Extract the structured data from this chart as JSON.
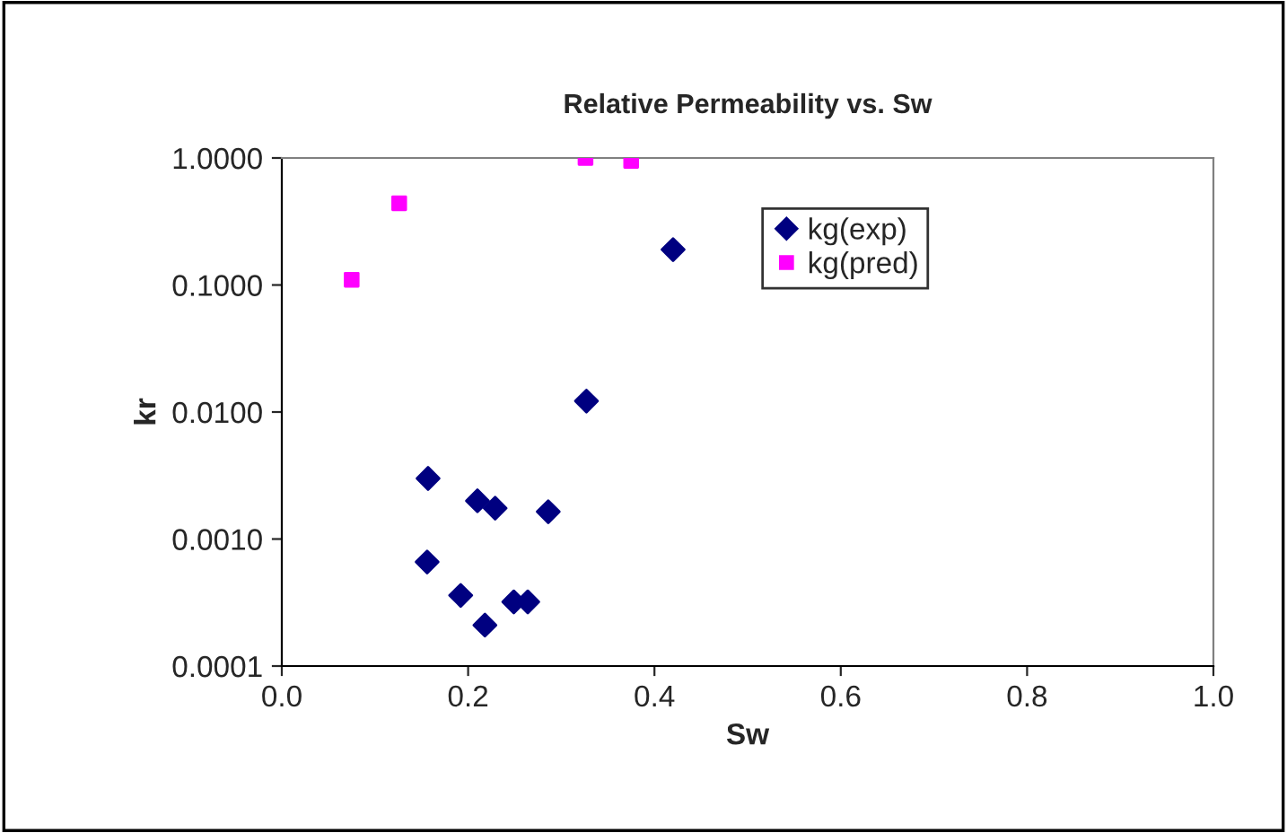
{
  "chart_data": {
    "type": "scatter",
    "title": "Relative Permeability vs. Sw",
    "xlabel": "Sw",
    "ylabel": "kr",
    "log": "y",
    "series": [
      {
        "name": "kg(exp)",
        "color": "#000080",
        "marker": "diamond",
        "x": [
          0.42,
          0.327,
          0.157,
          0.21,
          0.229,
          0.286,
          0.156,
          0.192,
          0.218,
          0.249,
          0.264
        ],
        "values": [
          0.19,
          0.0122,
          0.003,
          0.002,
          0.00175,
          0.00164,
          0.00066,
          0.00036,
          0.00021,
          0.00032,
          0.00032
        ]
      },
      {
        "name": "kg(pred)",
        "color": "#ff00ff",
        "marker": "square",
        "x": [
          0.075,
          0.126,
          0.326,
          0.375
        ],
        "values": [
          0.11,
          0.44,
          1.0,
          0.95
        ]
      }
    ],
    "xlim": [
      0,
      1
    ],
    "xticks": [
      {
        "value": 0,
        "label": "0.0"
      },
      {
        "value": 0.2,
        "label": "0.2"
      },
      {
        "value": 0.4,
        "label": "0.4"
      },
      {
        "value": 0.6,
        "label": "0.6"
      },
      {
        "value": 0.8,
        "label": "0.8"
      },
      {
        "value": 1,
        "label": "1.0"
      }
    ],
    "ylim": [
      0.0001,
      1
    ],
    "yticks": [
      {
        "value": 0.0001,
        "label": "0.0001"
      },
      {
        "value": 0.001,
        "label": "0.0010"
      },
      {
        "value": 0.01,
        "label": "0.0100"
      },
      {
        "value": 0.1,
        "label": "0.1000"
      },
      {
        "value": 1,
        "label": "1.0000"
      }
    ],
    "legend": "top right",
    "grid": false
  }
}
